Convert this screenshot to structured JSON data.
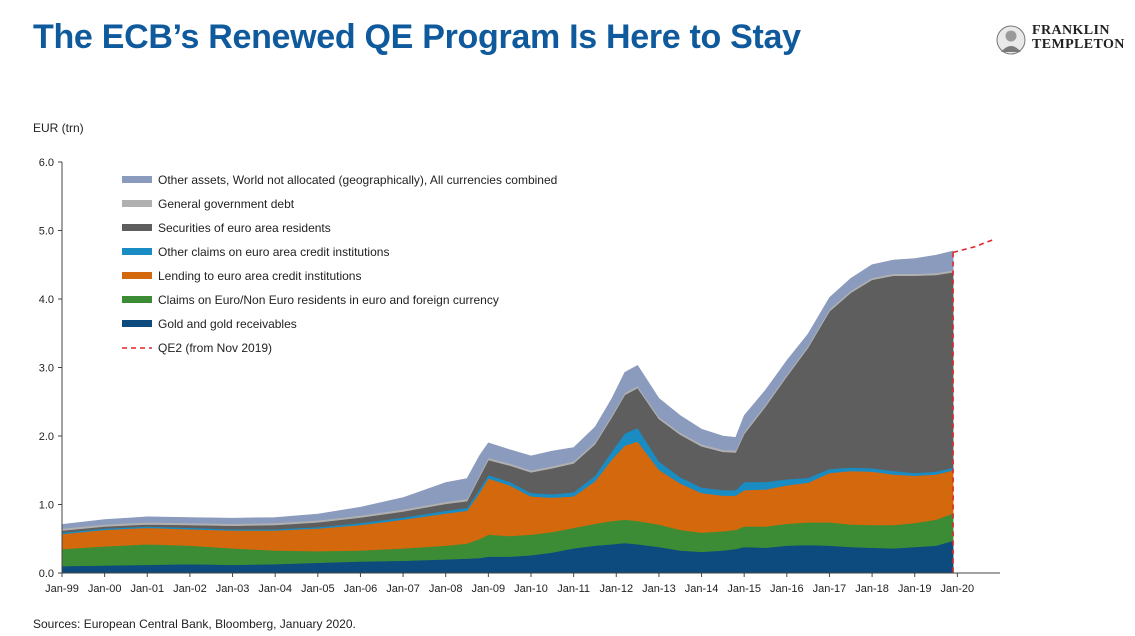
{
  "header": {
    "title": "The ECB’s Renewed QE Program Is Here to Stay"
  },
  "logo": {
    "line1": "FRANKLIN",
    "line2": "TEMPLETON",
    "icon": "franklin-portrait-seal"
  },
  "footer": {
    "source": "Sources: European Central Bank, Bloomberg, January 2020."
  },
  "chart_data": {
    "type": "area",
    "stacked": true,
    "ylabel": "EUR (trn)",
    "ylim": [
      0,
      6
    ],
    "yticks": [
      "0.0",
      "1.0",
      "2.0",
      "3.0",
      "4.0",
      "5.0",
      "6.0"
    ],
    "xlim": [
      1999,
      2021
    ],
    "xticks": [
      "Jan-99",
      "Jan-00",
      "Jan-01",
      "Jan-02",
      "Jan-03",
      "Jan-04",
      "Jan-05",
      "Jan-06",
      "Jan-07",
      "Jan-08",
      "Jan-09",
      "Jan-10",
      "Jan-11",
      "Jan-12",
      "Jan-13",
      "Jan-14",
      "Jan-15",
      "Jan-16",
      "Jan-17",
      "Jan-18",
      "Jan-19",
      "Jan-20"
    ],
    "legend_position": "top-left",
    "x": [
      1999.0,
      2000.0,
      2001.0,
      2002.0,
      2003.0,
      2004.0,
      2005.0,
      2006.0,
      2007.0,
      2008.0,
      2008.5,
      2008.8,
      2009.0,
      2009.5,
      2010.0,
      2010.5,
      2011.0,
      2011.5,
      2011.9,
      2012.2,
      2012.5,
      2013.0,
      2013.5,
      2014.0,
      2014.5,
      2014.8,
      2015.0,
      2015.5,
      2016.0,
      2016.5,
      2017.0,
      2017.5,
      2018.0,
      2018.5,
      2019.0,
      2019.5,
      2019.9
    ],
    "series": [
      {
        "name": "Gold and gold receivables",
        "color": "#0d4a7e",
        "values": [
          0.1,
          0.11,
          0.12,
          0.13,
          0.12,
          0.13,
          0.15,
          0.17,
          0.18,
          0.2,
          0.21,
          0.22,
          0.24,
          0.24,
          0.26,
          0.3,
          0.36,
          0.4,
          0.42,
          0.44,
          0.42,
          0.38,
          0.33,
          0.31,
          0.33,
          0.35,
          0.38,
          0.37,
          0.4,
          0.41,
          0.4,
          0.38,
          0.37,
          0.36,
          0.38,
          0.4,
          0.47
        ]
      },
      {
        "name": "Claims on Euro/Non Euro residents in euro and foreign currency",
        "color": "#3c8c35",
        "values": [
          0.25,
          0.28,
          0.3,
          0.27,
          0.24,
          0.2,
          0.17,
          0.16,
          0.18,
          0.2,
          0.22,
          0.28,
          0.32,
          0.3,
          0.3,
          0.3,
          0.3,
          0.32,
          0.34,
          0.34,
          0.34,
          0.33,
          0.3,
          0.28,
          0.28,
          0.28,
          0.3,
          0.31,
          0.32,
          0.33,
          0.34,
          0.33,
          0.33,
          0.34,
          0.35,
          0.38,
          0.4
        ]
      },
      {
        "name": "Lending to euro area credit institutions",
        "color": "#d4680c",
        "values": [
          0.22,
          0.24,
          0.24,
          0.24,
          0.26,
          0.29,
          0.33,
          0.37,
          0.42,
          0.47,
          0.48,
          0.68,
          0.82,
          0.74,
          0.56,
          0.5,
          0.46,
          0.62,
          0.9,
          1.08,
          1.16,
          0.8,
          0.68,
          0.58,
          0.52,
          0.5,
          0.53,
          0.54,
          0.56,
          0.58,
          0.72,
          0.78,
          0.78,
          0.74,
          0.69,
          0.66,
          0.63
        ]
      },
      {
        "name": "Other claims on euro area credit institutions",
        "color": "#1a8cc4",
        "values": [
          0.02,
          0.02,
          0.02,
          0.02,
          0.02,
          0.02,
          0.02,
          0.03,
          0.03,
          0.04,
          0.04,
          0.05,
          0.05,
          0.05,
          0.05,
          0.05,
          0.06,
          0.08,
          0.12,
          0.18,
          0.2,
          0.12,
          0.09,
          0.08,
          0.08,
          0.08,
          0.12,
          0.11,
          0.09,
          0.07,
          0.06,
          0.05,
          0.05,
          0.05,
          0.04,
          0.04,
          0.04
        ]
      },
      {
        "name": "Securities of euro area residents",
        "color": "#5e5e5e",
        "values": [
          0.03,
          0.03,
          0.03,
          0.04,
          0.05,
          0.06,
          0.07,
          0.08,
          0.09,
          0.1,
          0.1,
          0.18,
          0.22,
          0.24,
          0.3,
          0.38,
          0.42,
          0.46,
          0.5,
          0.56,
          0.58,
          0.62,
          0.62,
          0.6,
          0.56,
          0.55,
          0.7,
          1.1,
          1.5,
          1.9,
          2.3,
          2.55,
          2.75,
          2.85,
          2.88,
          2.87,
          2.85
        ]
      },
      {
        "name": "General government debt",
        "color": "#b0b0b0",
        "values": [
          0.03,
          0.03,
          0.03,
          0.03,
          0.03,
          0.03,
          0.03,
          0.03,
          0.03,
          0.03,
          0.03,
          0.03,
          0.03,
          0.03,
          0.03,
          0.03,
          0.03,
          0.03,
          0.03,
          0.03,
          0.03,
          0.03,
          0.03,
          0.03,
          0.03,
          0.03,
          0.03,
          0.03,
          0.03,
          0.03,
          0.03,
          0.03,
          0.03,
          0.03,
          0.03,
          0.03,
          0.03
        ]
      },
      {
        "name": "Other assets, World not allocated (geographically), All currencies combined",
        "color": "#8b9bbd",
        "values": [
          0.06,
          0.07,
          0.08,
          0.08,
          0.08,
          0.08,
          0.09,
          0.12,
          0.17,
          0.28,
          0.3,
          0.28,
          0.22,
          0.2,
          0.21,
          0.22,
          0.2,
          0.22,
          0.24,
          0.3,
          0.3,
          0.27,
          0.25,
          0.22,
          0.2,
          0.19,
          0.24,
          0.21,
          0.2,
          0.17,
          0.17,
          0.18,
          0.19,
          0.2,
          0.22,
          0.26,
          0.28
        ]
      }
    ],
    "projection": {
      "name": "QE2 (from Nov 2019)",
      "color": "#e0262a",
      "style": "dashed",
      "x": [
        2019.9,
        2020.4,
        2020.9
      ],
      "y": [
        4.68,
        4.76,
        4.88
      ]
    }
  }
}
